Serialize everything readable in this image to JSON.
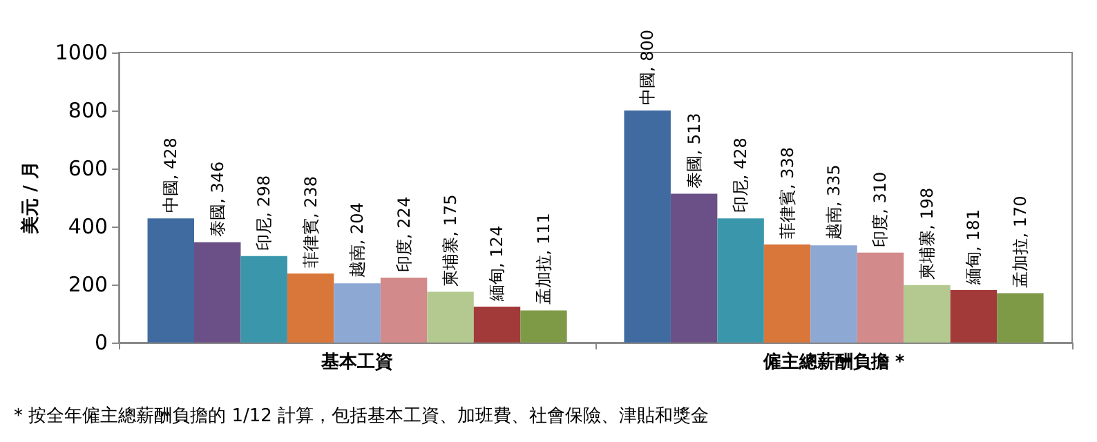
{
  "chart_data": {
    "type": "bar",
    "categories": [
      "基本工資",
      "僱主總薪酬負擔 *"
    ],
    "ylabel": "美元 / 月",
    "ylim": [
      0,
      1000
    ],
    "yticks": [
      0,
      200,
      400,
      600,
      800,
      1000
    ],
    "grid": false,
    "series": [
      {
        "color": "#3f6ba0",
        "values": [
          428,
          800
        ],
        "value_labels": [
          "中國, 428",
          "中國, 800"
        ]
      },
      {
        "color": "#6a5087",
        "values": [
          346,
          513
        ],
        "value_labels": [
          "泰國, 346",
          "泰國, 513"
        ]
      },
      {
        "color": "#3a97ab",
        "values": [
          298,
          428
        ],
        "value_labels": [
          "印尼, 298",
          "印尼, 428"
        ]
      },
      {
        "color": "#d9773a",
        "values": [
          238,
          338
        ],
        "value_labels": [
          "菲律賓, 238",
          "菲律賓, 338"
        ]
      },
      {
        "color": "#8ea8d4",
        "values": [
          204,
          335
        ],
        "value_labels": [
          "越南, 204",
          "越南, 335"
        ]
      },
      {
        "color": "#d28a8a",
        "values": [
          224,
          310
        ],
        "value_labels": [
          "印度, 224",
          "印度, 310"
        ]
      },
      {
        "color": "#b3c98f",
        "values": [
          175,
          198
        ],
        "value_labels": [
          "柬埔寨, 175",
          "柬埔寨, 198"
        ]
      },
      {
        "color": "#a33a3a",
        "values": [
          124,
          181
        ],
        "value_labels": [
          "緬甸, 124",
          "緬甸, 181"
        ]
      },
      {
        "color": "#7f9a47",
        "values": [
          111,
          170
        ],
        "value_labels": [
          "孟加拉, 111",
          "孟加拉, 170"
        ]
      }
    ],
    "annotations": [
      "* 按全年僱主總薪酬負擔的 1/12 計算，包括基本工資、加班費、社會保險、津貼和獎金"
    ]
  }
}
